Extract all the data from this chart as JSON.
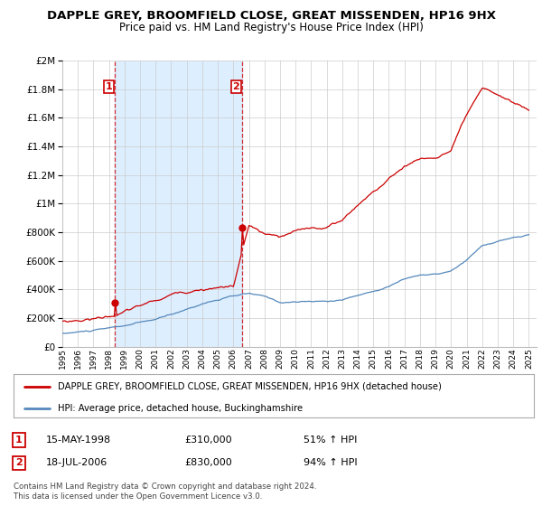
{
  "title": "DAPPLE GREY, BROOMFIELD CLOSE, GREAT MISSENDEN, HP16 9HX",
  "subtitle": "Price paid vs. HM Land Registry's House Price Index (HPI)",
  "legend_line1": "DAPPLE GREY, BROOMFIELD CLOSE, GREAT MISSENDEN, HP16 9HX (detached house)",
  "legend_line2": "HPI: Average price, detached house, Buckinghamshire",
  "purchase1_date": "15-MAY-1998",
  "purchase1_price": 310000,
  "purchase1_label": "£310,000",
  "purchase1_hpi": "51% ↑ HPI",
  "purchase2_date": "18-JUL-2006",
  "purchase2_price": 830000,
  "purchase2_label": "£830,000",
  "purchase2_hpi": "94% ↑ HPI",
  "footnote": "Contains HM Land Registry data © Crown copyright and database right 2024.\nThis data is licensed under the Open Government Licence v3.0.",
  "red_color": "#cc0000",
  "blue_color": "#5588bb",
  "shade_color": "#ddeeff",
  "bg_color": "#ffffff",
  "grid_color": "#cccccc",
  "ylim": [
    0,
    2000000
  ],
  "xlim_start": 1995.0,
  "xlim_end": 2025.5,
  "purchase1_x": 1998.37,
  "purchase2_x": 2006.54
}
